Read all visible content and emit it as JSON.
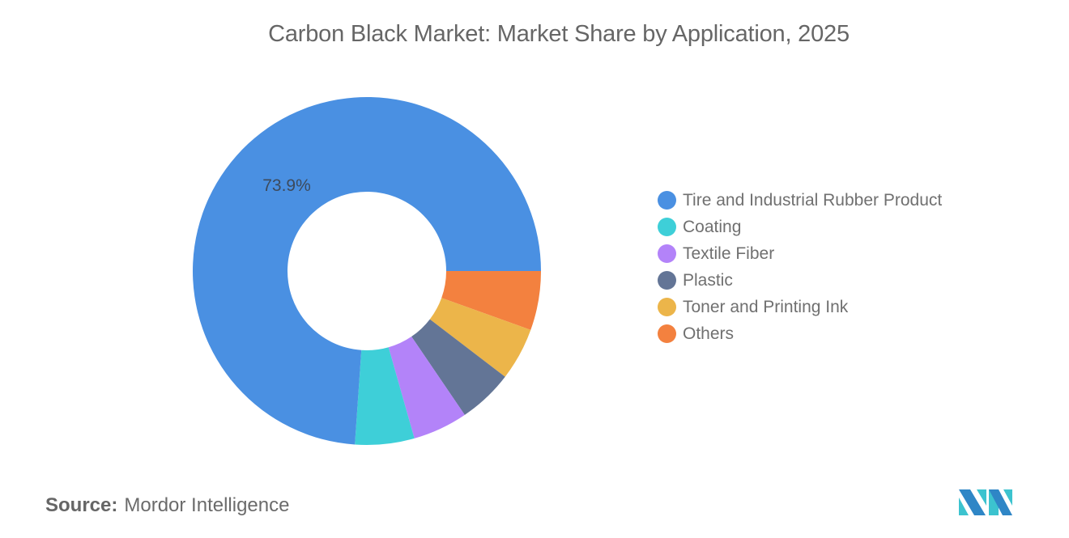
{
  "header": {
    "title": "Carbon Black Market: Market Share by Application, 2025"
  },
  "chart_data": {
    "type": "pie",
    "subtype": "donut",
    "title": "Carbon Black Market: Market Share by Application, 2025",
    "categories": [
      "Tire and Industrial Rubber Product",
      "Coating",
      "Textile Fiber",
      "Plastic",
      "Toner and Printing Ink",
      "Others"
    ],
    "values": [
      73.9,
      5.5,
      5.1,
      5.1,
      4.9,
      5.5
    ],
    "unit": "%",
    "colors": [
      "#4a90e2",
      "#3ecfd8",
      "#b383f9",
      "#637596",
      "#ecb54a",
      "#f3813f"
    ],
    "data_labels": [
      {
        "category": "Tire and Industrial Rubber Product",
        "text": "73.9%"
      }
    ],
    "legend_position": "right",
    "start_angle_deg": 0,
    "direction": "clockwise_from_3_oclock_in_reverse_order"
  },
  "legend": {
    "items": [
      {
        "label": "Tire and Industrial Rubber Product",
        "color": "#4a90e2"
      },
      {
        "label": "Coating",
        "color": "#3ecfd8"
      },
      {
        "label": "Textile Fiber",
        "color": "#b383f9"
      },
      {
        "label": "Plastic",
        "color": "#637596"
      },
      {
        "label": "Toner and Printing Ink",
        "color": "#ecb54a"
      },
      {
        "label": "Others",
        "color": "#f3813f"
      }
    ]
  },
  "labels": {
    "main_slice": "73.9%"
  },
  "footer": {
    "source_key": "Source:",
    "source_value": "Mordor Intelligence",
    "logo": "mordor-intelligence-logo"
  }
}
